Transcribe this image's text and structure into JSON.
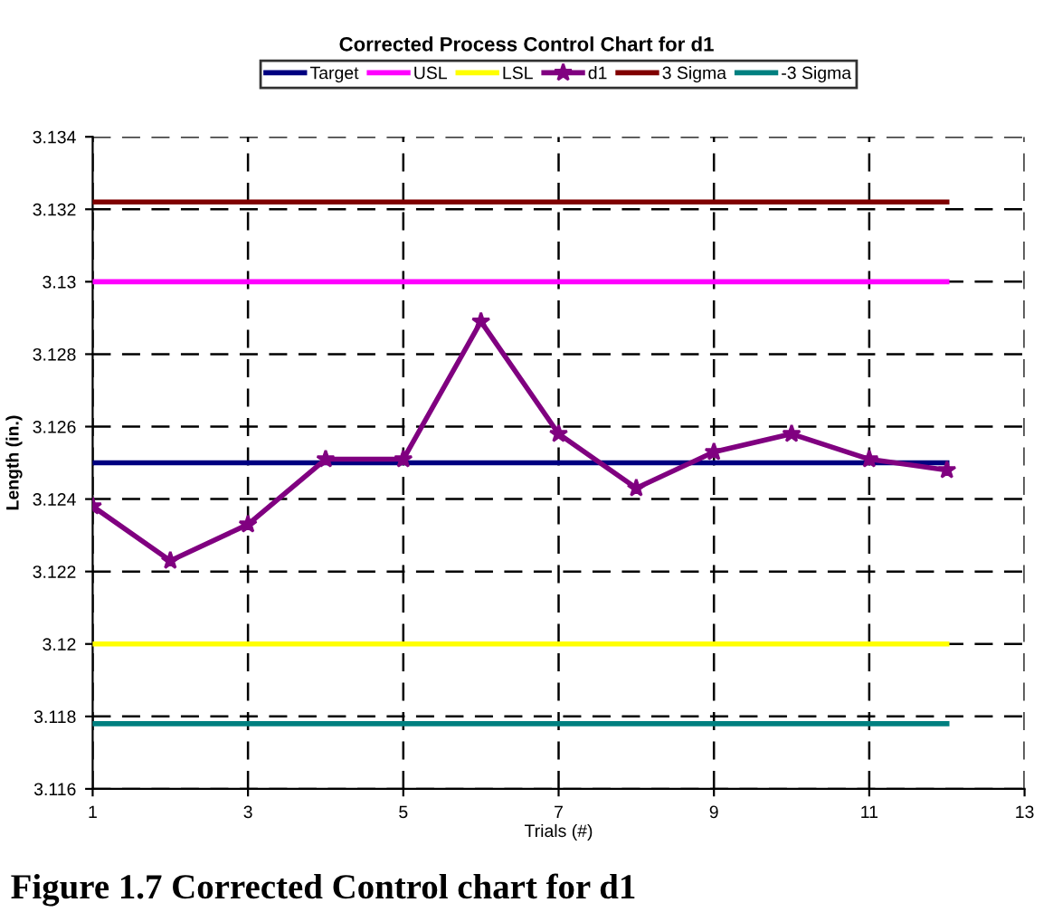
{
  "chart_data": {
    "type": "line",
    "title": "Corrected Process Control Chart for d1",
    "xlabel": "Trials (#)",
    "ylabel": "Length (in.)",
    "x": [
      1,
      2,
      3,
      4,
      5,
      6,
      7,
      8,
      9,
      10,
      11,
      12
    ],
    "series": [
      {
        "name": "Target",
        "color": "#000080",
        "marker": "none",
        "values": [
          3.125,
          3.125,
          3.125,
          3.125,
          3.125,
          3.125,
          3.125,
          3.125,
          3.125,
          3.125,
          3.125,
          3.125
        ]
      },
      {
        "name": "USL",
        "color": "#ff00ff",
        "marker": "none",
        "values": [
          3.13,
          3.13,
          3.13,
          3.13,
          3.13,
          3.13,
          3.13,
          3.13,
          3.13,
          3.13,
          3.13,
          3.13
        ]
      },
      {
        "name": "LSL",
        "color": "#ffff00",
        "marker": "none",
        "values": [
          3.12,
          3.12,
          3.12,
          3.12,
          3.12,
          3.12,
          3.12,
          3.12,
          3.12,
          3.12,
          3.12,
          3.12
        ]
      },
      {
        "name": "d1",
        "color": "#800080",
        "marker": "star",
        "values": [
          3.1238,
          3.1223,
          3.1233,
          3.1251,
          3.1251,
          3.1289,
          3.1258,
          3.1243,
          3.1253,
          3.1258,
          3.1251,
          3.1248
        ]
      },
      {
        "name": "3 Sigma",
        "color": "#800000",
        "marker": "none",
        "values": [
          3.1322,
          3.1322,
          3.1322,
          3.1322,
          3.1322,
          3.1322,
          3.1322,
          3.1322,
          3.1322,
          3.1322,
          3.1322,
          3.1322
        ]
      },
      {
        "name": "-3 Sigma",
        "color": "#008080",
        "marker": "none",
        "values": [
          3.1178,
          3.1178,
          3.1178,
          3.1178,
          3.1178,
          3.1178,
          3.1178,
          3.1178,
          3.1178,
          3.1178,
          3.1178,
          3.1178
        ]
      }
    ],
    "xlim": [
      1,
      13
    ],
    "xticks": [
      1,
      3,
      5,
      7,
      9,
      11,
      13
    ],
    "ylim": [
      3.116,
      3.134
    ],
    "yticks": [
      {
        "value": 3.116,
        "label": "3.116"
      },
      {
        "value": 3.118,
        "label": "3.118"
      },
      {
        "value": 3.12,
        "label": "3.12"
      },
      {
        "value": 3.122,
        "label": "3.122"
      },
      {
        "value": 3.124,
        "label": "3.124"
      },
      {
        "value": 3.126,
        "label": "3.126"
      },
      {
        "value": 3.128,
        "label": "3.128"
      },
      {
        "value": 3.13,
        "label": "3.13"
      },
      {
        "value": 3.132,
        "label": "3.132"
      },
      {
        "value": 3.134,
        "label": "3.134"
      }
    ],
    "grid": true,
    "legend": "top",
    "line_style": "solid",
    "annotations": [
      "Figure 1.7 Corrected Control chart for d1"
    ]
  }
}
